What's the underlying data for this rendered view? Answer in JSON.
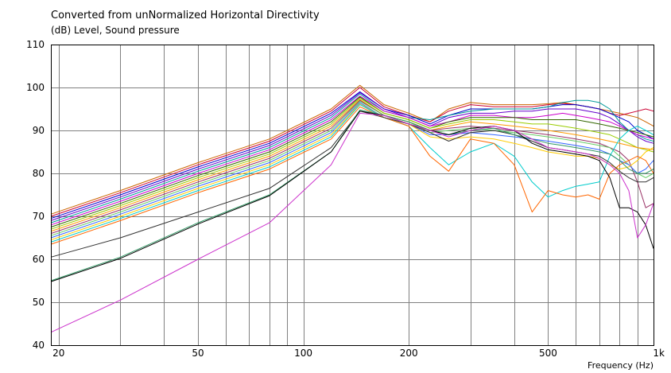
{
  "title": "Converted from unNormalized Horizontal Directivity",
  "subtitle": "(dB)  Level, Sound pressure",
  "colors": {
    "background": "#ffffff",
    "grid": "#808080",
    "frame": "#000000"
  },
  "chart_data": {
    "type": "line",
    "title": "Converted from unNormalized Horizontal Directivity",
    "ylabel": "(dB)  Level, Sound pressure",
    "xlabel": "Frequency  (Hz)",
    "x_scale": "log",
    "xlim": [
      19,
      1000
    ],
    "ylim": [
      40,
      110
    ],
    "grid": true,
    "y_ticks": [
      40,
      50,
      60,
      70,
      80,
      90,
      100,
      110
    ],
    "x_ticks": [
      {
        "value": 20,
        "label": "20"
      },
      {
        "value": 50,
        "label": "50"
      },
      {
        "value": 100,
        "label": "100"
      },
      {
        "value": 200,
        "label": "200"
      },
      {
        "value": 500,
        "label": "500"
      },
      {
        "value": 1000,
        "label": "1k"
      }
    ],
    "x": [
      19,
      30,
      50,
      80,
      120,
      145,
      170,
      200,
      230,
      260,
      300,
      350,
      400,
      450,
      500,
      550,
      600,
      650,
      700,
      750,
      800,
      850,
      900,
      950,
      1000
    ],
    "series": [
      {
        "color": "#cc6600",
        "values": [
          70.5,
          76,
          82.5,
          88,
          95,
          100.5,
          96,
          94,
          92,
          95,
          96.5,
          96,
          96,
          96,
          96.2,
          96.5,
          96,
          95.5,
          95,
          94.5,
          94,
          93.5,
          93,
          92,
          91
        ]
      },
      {
        "color": "#cc0033",
        "values": [
          70,
          75.5,
          82,
          87.5,
          94.5,
          100,
          95.5,
          93.5,
          92,
          94.5,
          96,
          95.5,
          95.5,
          95.5,
          96,
          96.3,
          96,
          95.5,
          95,
          94,
          93.5,
          94,
          94.5,
          95,
          94.5
        ]
      },
      {
        "color": "#0000cc",
        "values": [
          69.5,
          75,
          81.5,
          87,
          94,
          99,
          95,
          93.5,
          91.5,
          93.5,
          95,
          95,
          95,
          95,
          95.5,
          96,
          96,
          95.5,
          95,
          94,
          93,
          92,
          90,
          89,
          88
        ]
      },
      {
        "color": "#6600cc",
        "values": [
          69,
          74.5,
          81,
          86.5,
          93.5,
          98.8,
          95,
          93,
          91,
          93,
          94,
          94,
          94.5,
          94.5,
          95,
          95,
          95,
          94.5,
          94,
          93,
          91.5,
          90,
          88.5,
          87.5,
          87
        ]
      },
      {
        "color": "#009999",
        "values": [
          68.5,
          74,
          80.5,
          86,
          93,
          98.5,
          94.5,
          93,
          92.5,
          93.5,
          94.5,
          95,
          95,
          95,
          95.5,
          96.5,
          97,
          97,
          96.5,
          95,
          92,
          90,
          89,
          88,
          87.5
        ]
      },
      {
        "color": "#cc00cc",
        "values": [
          68,
          73.5,
          80,
          85.5,
          92.5,
          98,
          94.5,
          93,
          91,
          92,
          93.5,
          93.5,
          93,
          93,
          93.5,
          94,
          93.5,
          93,
          92.5,
          92,
          91,
          90,
          89,
          88.5,
          88
        ]
      },
      {
        "color": "#336600",
        "values": [
          67.5,
          73,
          79.5,
          85,
          92,
          97.8,
          94,
          92.5,
          90.5,
          92,
          93,
          93,
          93,
          92.5,
          92.5,
          92.5,
          92.5,
          92,
          91.5,
          91,
          90.5,
          90,
          89.5,
          89,
          88.5
        ]
      },
      {
        "color": "#99cc00",
        "values": [
          67,
          72.5,
          79,
          84.5,
          91.5,
          97.5,
          94,
          92.5,
          90.5,
          91.5,
          92.5,
          92.5,
          92,
          91.5,
          91.5,
          91,
          90.5,
          90,
          89.5,
          89,
          88,
          87,
          86,
          85.5,
          85
        ]
      },
      {
        "color": "#ff9900",
        "values": [
          66.5,
          72,
          78.5,
          84,
          91,
          97.2,
          93.5,
          92,
          90,
          91,
          92,
          91.5,
          91,
          90.5,
          90,
          89.5,
          89,
          88.5,
          88,
          87.5,
          87,
          86.5,
          86,
          85.8,
          85.5
        ]
      },
      {
        "color": "#993366",
        "values": [
          66,
          71.5,
          78,
          83.5,
          90.5,
          97,
          93.5,
          92,
          90,
          90.5,
          91,
          90.5,
          90,
          89.5,
          89,
          88.5,
          88,
          87.5,
          87,
          86,
          85,
          83,
          78,
          72,
          73
        ]
      },
      {
        "color": "#66cc66",
        "values": [
          65.5,
          71,
          77.5,
          83,
          90,
          96.8,
          93.5,
          92,
          89.5,
          90,
          90.5,
          90,
          89.5,
          89,
          88.5,
          88,
          87.5,
          87,
          86.5,
          86,
          84,
          82,
          80,
          79,
          80
        ]
      },
      {
        "color": "#3366ff",
        "values": [
          65,
          70.5,
          77,
          82.5,
          89.5,
          96.5,
          93,
          91.5,
          89,
          89,
          89.5,
          89,
          88.5,
          88,
          87.5,
          87,
          86.5,
          86,
          85.5,
          84.5,
          83,
          82,
          80,
          81,
          83
        ]
      },
      {
        "color": "#ffcc00",
        "values": [
          64.5,
          70,
          76.5,
          82,
          89,
          96.2,
          93,
          91.5,
          88.5,
          88,
          88.5,
          88,
          87,
          86,
          85,
          84.5,
          84,
          84,
          83.5,
          82,
          81,
          81.5,
          83,
          85,
          86
        ]
      },
      {
        "color": "#00cccc",
        "values": [
          64,
          69.5,
          76,
          81.5,
          88.5,
          96,
          93,
          91,
          86,
          82,
          85,
          87,
          84,
          78,
          74.5,
          76,
          77,
          77.5,
          78,
          84,
          88,
          90,
          91,
          90,
          89
        ]
      },
      {
        "color": "#ff6600",
        "values": [
          63.5,
          69,
          75.5,
          81,
          88,
          95.5,
          93,
          91,
          84,
          80.5,
          88,
          87,
          82,
          71,
          76,
          75,
          74.5,
          75,
          74,
          80,
          82,
          83,
          84,
          83,
          80
        ]
      },
      {
        "color": "#333333",
        "values": [
          60.5,
          65,
          71,
          76.5,
          86,
          94.5,
          93,
          91.5,
          89.5,
          87.5,
          89.5,
          90,
          89,
          87.5,
          86,
          85.5,
          85,
          84.5,
          84,
          82.5,
          80.5,
          79,
          78,
          78,
          79
        ]
      },
      {
        "color": "#339966",
        "values": [
          55,
          60.5,
          68.5,
          75,
          85,
          94.8,
          93.5,
          92,
          90,
          89,
          90,
          90.5,
          89,
          88,
          87,
          86.5,
          86,
          85.5,
          85,
          84.5,
          83,
          81,
          80,
          80,
          81
        ]
      },
      {
        "color": "#000000",
        "values": [
          54.8,
          60.2,
          68.2,
          74.8,
          85,
          94.5,
          93.5,
          91.5,
          90,
          89,
          90.5,
          91,
          90,
          87,
          85.5,
          85,
          84.5,
          84,
          83,
          79,
          72,
          72,
          71,
          68,
          62.5
        ]
      },
      {
        "color": "#cc33cc",
        "values": [
          43,
          50.5,
          60,
          68.5,
          82,
          94,
          93.5,
          91.5,
          90,
          88.5,
          90,
          91,
          90,
          88,
          86,
          85.5,
          85,
          84.5,
          83.5,
          82,
          80,
          76,
          65,
          68,
          73
        ]
      }
    ]
  }
}
